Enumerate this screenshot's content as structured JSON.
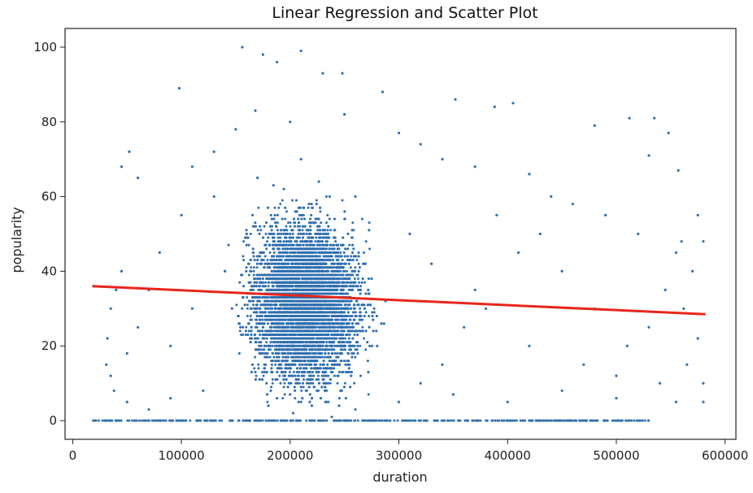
{
  "chart_data": {
    "type": "scatter",
    "title": "Linear Regression and Scatter Plot",
    "xlabel": "duration",
    "ylabel": "popularity",
    "xlim": [
      -7000,
      610000
    ],
    "ylim": [
      -5,
      105
    ],
    "x_ticks": [
      0,
      100000,
      200000,
      300000,
      400000,
      500000,
      600000
    ],
    "x_tick_labels": [
      "0",
      "100000",
      "200000",
      "300000",
      "400000",
      "500000",
      "600000"
    ],
    "y_ticks": [
      0,
      20,
      40,
      60,
      80,
      100
    ],
    "y_tick_labels": [
      "0",
      "20",
      "40",
      "60",
      "80",
      "100"
    ],
    "grid": false,
    "legend": "none",
    "colors": {
      "points": "#2f6fb0",
      "regression": "#e8261c",
      "axes": "#222222"
    },
    "series": [
      {
        "kind": "scatter",
        "points": [
          [
            156000,
            100
          ],
          [
            210000,
            99
          ],
          [
            175000,
            98
          ],
          [
            188000,
            96
          ],
          [
            230000,
            93
          ],
          [
            248000,
            93
          ],
          [
            98000,
            89
          ],
          [
            285000,
            88
          ],
          [
            352000,
            86
          ],
          [
            405000,
            85
          ],
          [
            388000,
            84
          ],
          [
            168000,
            83
          ],
          [
            480000,
            79
          ],
          [
            512000,
            81
          ],
          [
            535000,
            81
          ],
          [
            548000,
            77
          ],
          [
            530000,
            71
          ],
          [
            557000,
            67
          ],
          [
            52000,
            72
          ],
          [
            60000,
            65
          ],
          [
            45000,
            68
          ],
          [
            110000,
            68
          ],
          [
            130000,
            72
          ],
          [
            150000,
            78
          ],
          [
            200000,
            80
          ],
          [
            250000,
            82
          ],
          [
            300000,
            77
          ],
          [
            320000,
            74
          ],
          [
            340000,
            70
          ],
          [
            370000,
            68
          ],
          [
            420000,
            66
          ],
          [
            440000,
            60
          ],
          [
            460000,
            58
          ],
          [
            490000,
            55
          ],
          [
            520000,
            50
          ],
          [
            560000,
            48
          ],
          [
            575000,
            55
          ],
          [
            580000,
            48
          ],
          [
            570000,
            40
          ],
          [
            562000,
            30
          ],
          [
            575000,
            22
          ],
          [
            565000,
            15
          ],
          [
            580000,
            10
          ],
          [
            555000,
            5
          ],
          [
            580000,
            5
          ],
          [
            45000,
            40
          ],
          [
            40000,
            35
          ],
          [
            35000,
            30
          ],
          [
            32000,
            22
          ],
          [
            31000,
            15
          ],
          [
            35000,
            12
          ],
          [
            38000,
            8
          ],
          [
            50000,
            5
          ],
          [
            70000,
            3
          ],
          [
            90000,
            6
          ],
          [
            120000,
            8
          ],
          [
            180000,
            4
          ],
          [
            220000,
            6
          ],
          [
            260000,
            3
          ],
          [
            300000,
            5
          ],
          [
            350000,
            7
          ],
          [
            400000,
            5
          ],
          [
            450000,
            8
          ],
          [
            500000,
            6
          ],
          [
            540000,
            10
          ],
          [
            510000,
            20
          ],
          [
            480000,
            30
          ],
          [
            450000,
            40
          ],
          [
            430000,
            50
          ],
          [
            410000,
            45
          ],
          [
            390000,
            55
          ],
          [
            370000,
            35
          ],
          [
            360000,
            25
          ],
          [
            340000,
            15
          ],
          [
            320000,
            10
          ],
          [
            280000,
            20
          ],
          [
            240000,
            30
          ],
          [
            200000,
            40
          ],
          [
            160000,
            50
          ],
          [
            130000,
            60
          ],
          [
            100000,
            55
          ],
          [
            80000,
            45
          ],
          [
            70000,
            35
          ],
          [
            60000,
            25
          ],
          [
            50000,
            18
          ],
          [
            90000,
            20
          ],
          [
            110000,
            30
          ],
          [
            140000,
            40
          ],
          [
            170000,
            65
          ],
          [
            210000,
            70
          ],
          [
            260000,
            60
          ],
          [
            310000,
            50
          ],
          [
            330000,
            42
          ],
          [
            380000,
            30
          ],
          [
            420000,
            20
          ],
          [
            470000,
            15
          ],
          [
            500000,
            12
          ],
          [
            530000,
            25
          ],
          [
            545000,
            35
          ],
          [
            555000,
            45
          ]
        ],
        "zero_popularity_x_range": [
          18000,
          530000
        ]
      },
      {
        "kind": "line",
        "points": [
          [
            18000,
            36
          ],
          [
            582000,
            28.5
          ]
        ]
      }
    ]
  }
}
